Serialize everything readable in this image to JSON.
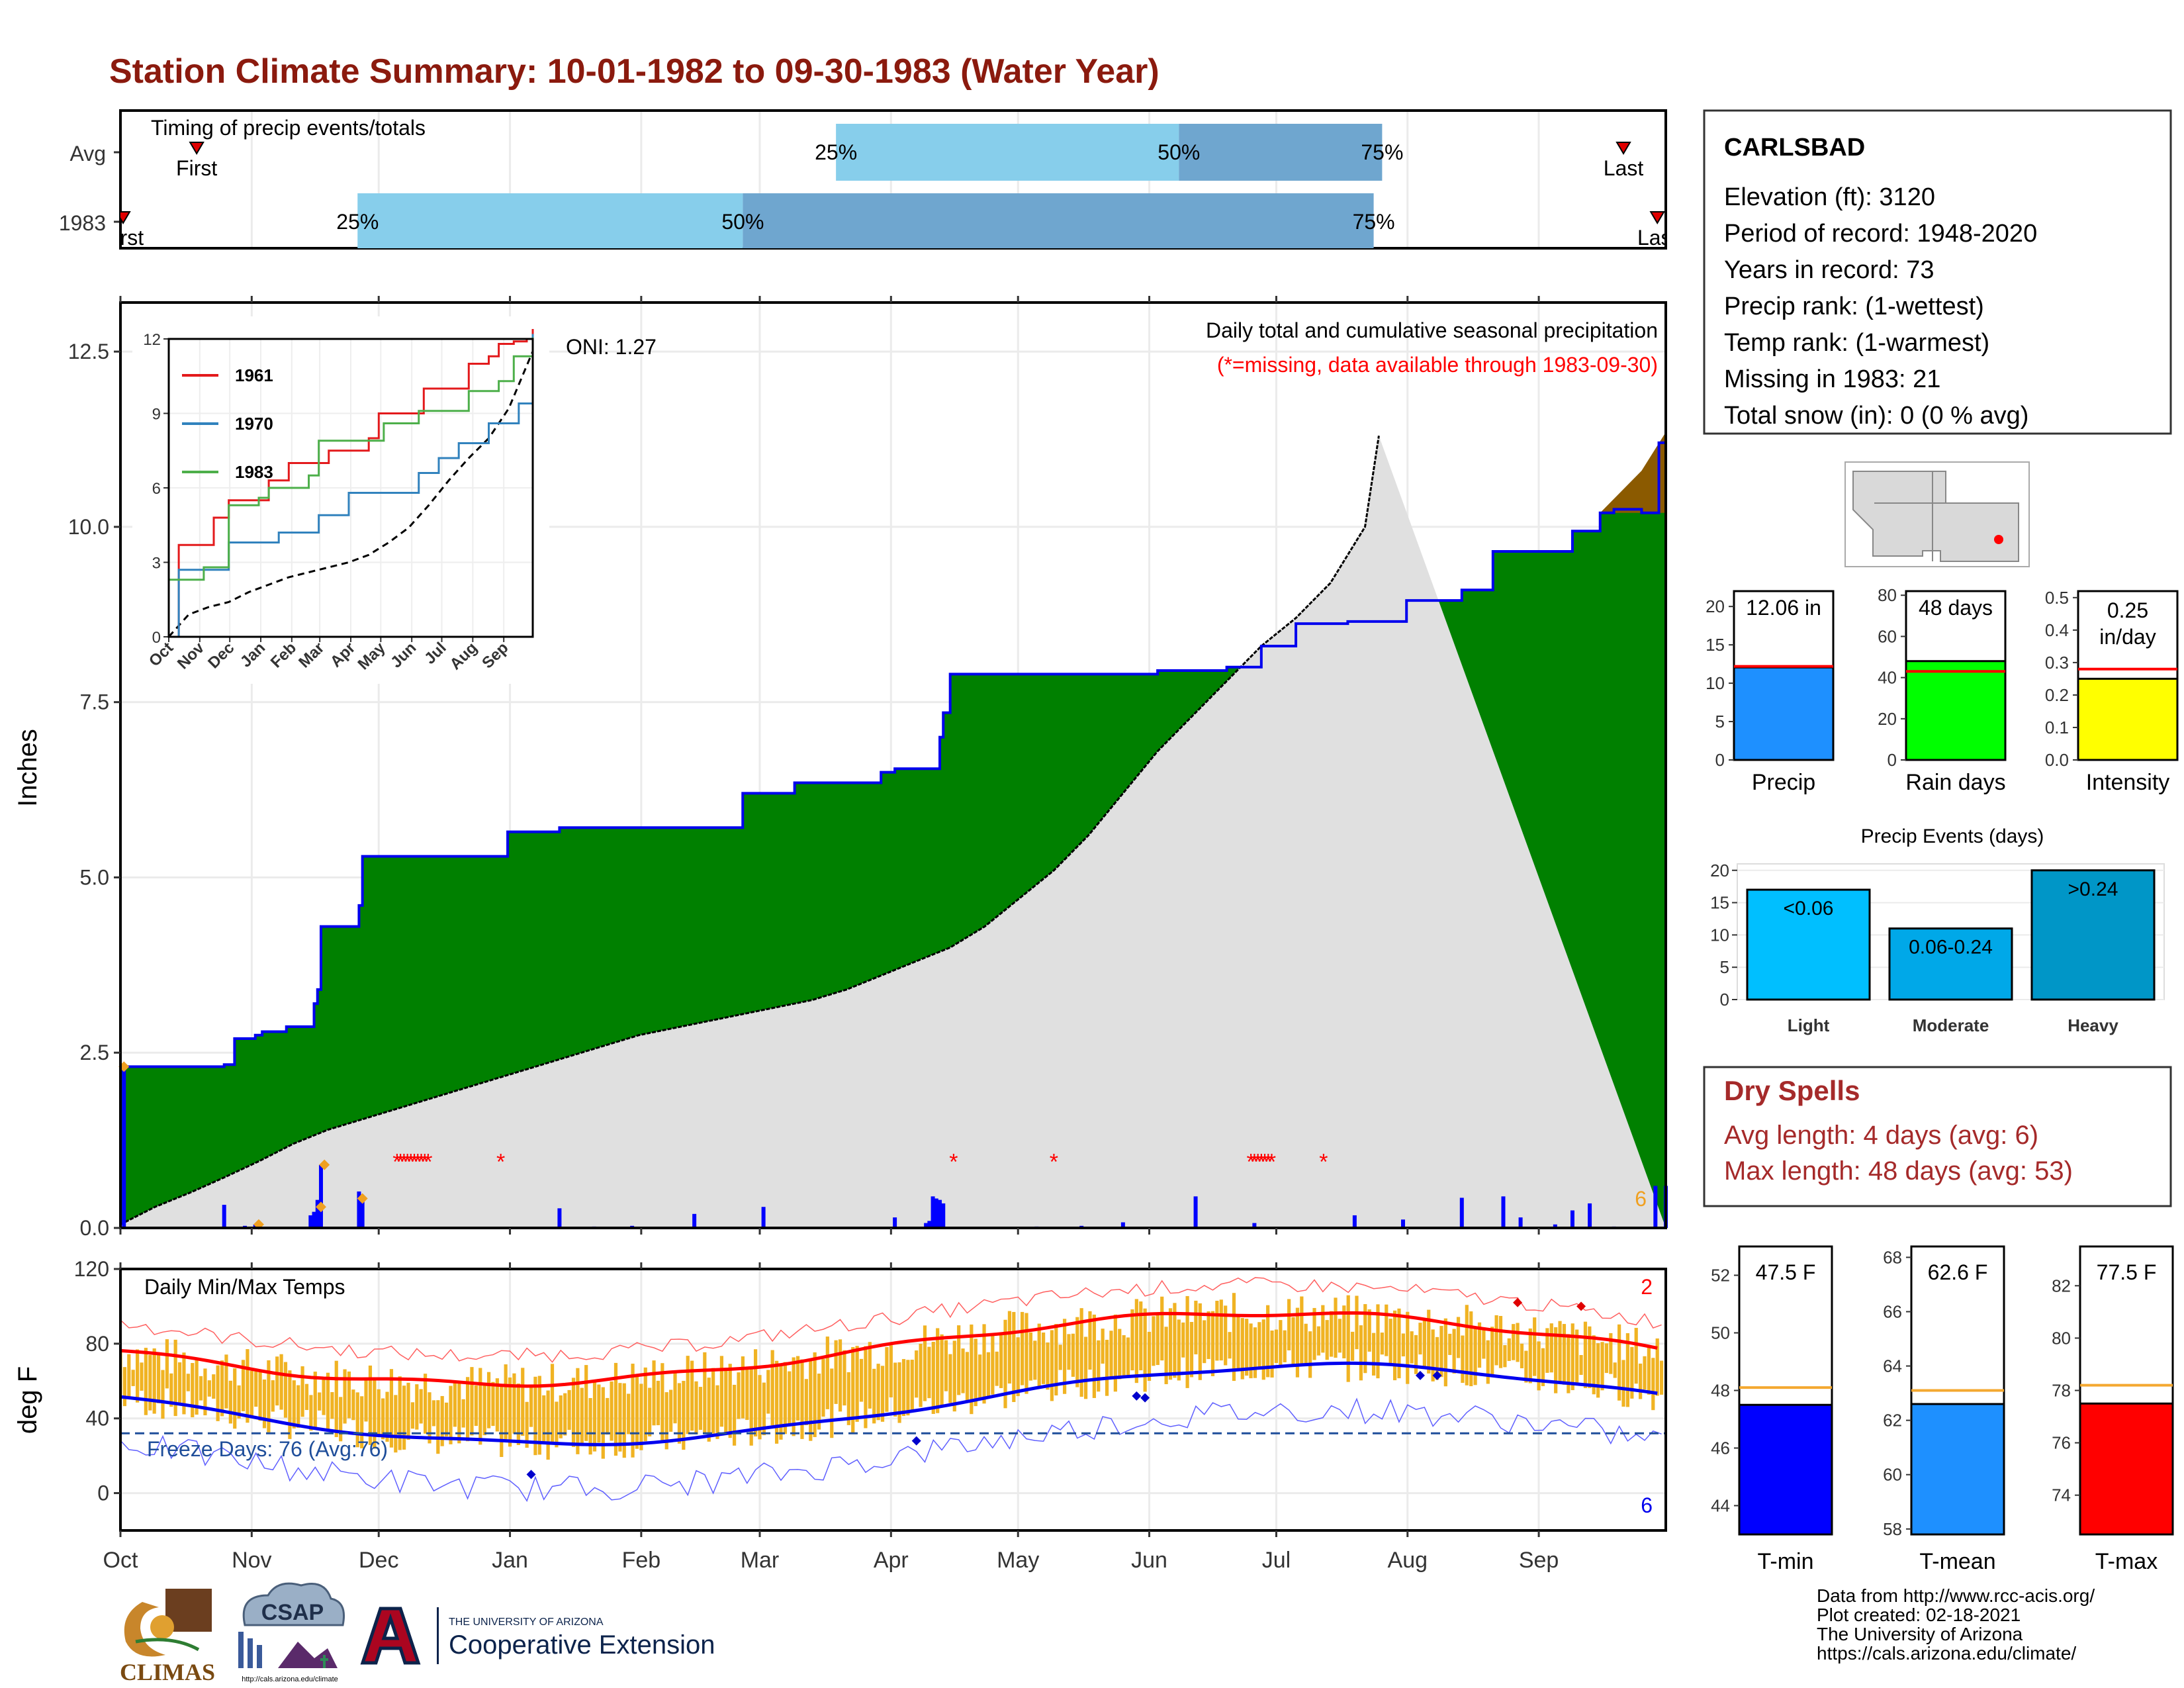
{
  "title": "Station Climate Summary: 10-01-1982 to 09-30-1983 (Water Year)",
  "colors": {
    "title": "#8B1A0E",
    "green": "#008000",
    "brown": "#8B5A00",
    "normal_fill": "#E0E0E0",
    "blue_line": "#0000EE",
    "orange": "#F0B323",
    "red": "#FF0000",
    "light_blue": "#87CEEB",
    "mid_blue": "#6FA6CF",
    "dry_spell": "#A52A2A"
  },
  "timing": {
    "label": "Timing of precip events/totals",
    "rows": [
      "Avg",
      "1983"
    ],
    "avg": {
      "first_label": "First",
      "last_label": "Last",
      "first_day": 18,
      "last_day": 355,
      "p25": 169,
      "p50": 250,
      "p75": 298
    },
    "year": {
      "first_label": "First",
      "last_label": "Last",
      "first_day": 0,
      "last_day": 363,
      "p25": 56,
      "p50": 147,
      "p75": 296
    },
    "pct_labels": [
      "25%",
      "50%",
      "75%"
    ]
  },
  "months": [
    "Oct",
    "Nov",
    "Dec",
    "Jan",
    "Feb",
    "Mar",
    "Apr",
    "May",
    "Jun",
    "Jul",
    "Aug",
    "Sep"
  ],
  "precip": {
    "ylabel": "Inches",
    "yticks": [
      "0.0",
      "2.5",
      "5.0",
      "7.5",
      "10.0",
      "12.5"
    ],
    "ylim": [
      0,
      13.2
    ],
    "subtitle": "Daily total and cumulative seasonal precipitation",
    "missing_note": "(*=missing, data available through 1983-09-30)",
    "oni": "ONI: 1.27",
    "corner_count": "6",
    "cumulative_steps": [
      [
        0,
        2.3
      ],
      [
        30,
        2.33
      ],
      [
        33,
        2.7
      ],
      [
        39,
        2.75
      ],
      [
        41,
        2.8
      ],
      [
        48,
        2.87
      ],
      [
        56,
        3.2
      ],
      [
        57,
        3.4
      ],
      [
        58,
        4.3
      ],
      [
        69,
        4.6
      ],
      [
        70,
        5.3
      ],
      [
        112,
        5.65
      ],
      [
        127,
        5.71
      ],
      [
        180,
        6.2
      ],
      [
        195,
        6.35
      ],
      [
        220,
        6.5
      ],
      [
        224,
        6.55
      ],
      [
        237,
        7.0
      ],
      [
        238,
        7.35
      ],
      [
        240,
        7.9
      ],
      [
        300,
        7.95
      ],
      [
        320,
        8.0
      ],
      [
        330,
        8.3
      ],
      [
        340,
        8.62
      ],
      [
        355,
        8.65
      ],
      [
        372,
        8.95
      ],
      [
        388,
        9.1
      ],
      [
        397,
        9.65
      ],
      [
        420,
        9.94
      ],
      [
        428,
        10.2
      ],
      [
        432,
        10.25
      ],
      [
        440,
        10.2
      ],
      [
        445,
        11.2
      ],
      [
        447,
        12.06
      ]
    ],
    "normal_points": [
      [
        0,
        0.05
      ],
      [
        10,
        0.3
      ],
      [
        20,
        0.5
      ],
      [
        30,
        0.72
      ],
      [
        40,
        0.95
      ],
      [
        50,
        1.2
      ],
      [
        60,
        1.4
      ],
      [
        70,
        1.55
      ],
      [
        80,
        1.7
      ],
      [
        90,
        1.85
      ],
      [
        100,
        2.0
      ],
      [
        110,
        2.15
      ],
      [
        120,
        2.3
      ],
      [
        130,
        2.45
      ],
      [
        140,
        2.6
      ],
      [
        150,
        2.75
      ],
      [
        160,
        2.85
      ],
      [
        170,
        2.95
      ],
      [
        180,
        3.05
      ],
      [
        190,
        3.15
      ],
      [
        200,
        3.25
      ],
      [
        210,
        3.4
      ],
      [
        220,
        3.6
      ],
      [
        230,
        3.8
      ],
      [
        240,
        4.0
      ],
      [
        250,
        4.3
      ],
      [
        260,
        4.7
      ],
      [
        270,
        5.1
      ],
      [
        280,
        5.6
      ],
      [
        290,
        6.2
      ],
      [
        300,
        6.8
      ],
      [
        310,
        7.3
      ],
      [
        320,
        7.8
      ],
      [
        330,
        8.3
      ],
      [
        340,
        8.7
      ],
      [
        350,
        9.2
      ],
      [
        360,
        10.0
      ],
      [
        364,
        11.3
      ]
    ],
    "daily_bars": [
      [
        1,
        2.3
      ],
      [
        30,
        0.33
      ],
      [
        36,
        0.03
      ],
      [
        39,
        0.05
      ],
      [
        55,
        0.18
      ],
      [
        56,
        0.23
      ],
      [
        57,
        0.4
      ],
      [
        58,
        0.9
      ],
      [
        69,
        0.52
      ],
      [
        70,
        0.42
      ],
      [
        127,
        0.28
      ],
      [
        137,
        0.02
      ],
      [
        148,
        0.03
      ],
      [
        166,
        0.2
      ],
      [
        186,
        0.3
      ],
      [
        224,
        0.15
      ],
      [
        233,
        0.07
      ],
      [
        234,
        0.1
      ],
      [
        235,
        0.45
      ],
      [
        236,
        0.42
      ],
      [
        237,
        0.4
      ],
      [
        238,
        0.35
      ],
      [
        265,
        0.02
      ],
      [
        278,
        0.03
      ],
      [
        290,
        0.08
      ],
      [
        311,
        0.45
      ],
      [
        328,
        0.07
      ],
      [
        357,
        0.18
      ],
      [
        371,
        0.12
      ],
      [
        388,
        0.43
      ],
      [
        400,
        0.45
      ],
      [
        405,
        0.15
      ],
      [
        415,
        0.05
      ],
      [
        420,
        0.25
      ],
      [
        425,
        0.35
      ],
      [
        432,
        0.02
      ],
      [
        444,
        0.6
      ],
      [
        447,
        0.6
      ]
    ],
    "missing_days": [
      80,
      81,
      82,
      83,
      84,
      85,
      86,
      87,
      88,
      89,
      110,
      241,
      270,
      327,
      328,
      329,
      330,
      331,
      332,
      333,
      348
    ],
    "estimate_days": [
      [
        1,
        2.3
      ],
      [
        40,
        0.05
      ],
      [
        58,
        0.3
      ],
      [
        59,
        0.9
      ],
      [
        70,
        0.42
      ]
    ]
  },
  "inset": {
    "yticks": [
      "0",
      "3",
      "6",
      "9",
      "12"
    ],
    "xticks": [
      "Oct",
      "Nov",
      "Dec",
      "Jan",
      "Feb",
      "Mar",
      "Apr",
      "May",
      "Jun",
      "Jul",
      "Aug",
      "Sep"
    ],
    "series": [
      {
        "name": "1961",
        "color": "#E31A1C",
        "points": [
          [
            0,
            0
          ],
          [
            10,
            3.7
          ],
          [
            40,
            3.7
          ],
          [
            45,
            4.8
          ],
          [
            60,
            5.5
          ],
          [
            90,
            5.5
          ],
          [
            100,
            6.3
          ],
          [
            120,
            7.0
          ],
          [
            150,
            7.0
          ],
          [
            160,
            7.5
          ],
          [
            180,
            7.5
          ],
          [
            200,
            8.0
          ],
          [
            210,
            9.0
          ],
          [
            240,
            9.0
          ],
          [
            255,
            10.0
          ],
          [
            290,
            10.0
          ],
          [
            300,
            11.0
          ],
          [
            320,
            11.3
          ],
          [
            330,
            11.8
          ],
          [
            345,
            11.9
          ],
          [
            358,
            12.0
          ],
          [
            364,
            12.4
          ]
        ]
      },
      {
        "name": "1970",
        "color": "#3182BD",
        "points": [
          [
            0,
            0
          ],
          [
            10,
            2.7
          ],
          [
            50,
            2.7
          ],
          [
            60,
            3.8
          ],
          [
            90,
            3.8
          ],
          [
            110,
            4.2
          ],
          [
            130,
            4.2
          ],
          [
            150,
            4.9
          ],
          [
            170,
            4.9
          ],
          [
            180,
            5.8
          ],
          [
            230,
            5.8
          ],
          [
            250,
            6.6
          ],
          [
            270,
            7.2
          ],
          [
            290,
            7.8
          ],
          [
            320,
            8.6
          ],
          [
            345,
            8.6
          ],
          [
            350,
            9.4
          ],
          [
            364,
            12.2
          ]
        ]
      },
      {
        "name": "1983",
        "color": "#4DAF4A",
        "points": [
          [
            0,
            2.3
          ],
          [
            30,
            2.3
          ],
          [
            35,
            2.8
          ],
          [
            55,
            2.8
          ],
          [
            60,
            5.3
          ],
          [
            90,
            5.6
          ],
          [
            100,
            6.0
          ],
          [
            130,
            6.0
          ],
          [
            140,
            6.5
          ],
          [
            150,
            7.9
          ],
          [
            200,
            7.9
          ],
          [
            215,
            8.6
          ],
          [
            240,
            8.6
          ],
          [
            250,
            9.1
          ],
          [
            290,
            9.1
          ],
          [
            300,
            9.9
          ],
          [
            330,
            10.3
          ],
          [
            345,
            11.3
          ],
          [
            364,
            12.06
          ]
        ]
      }
    ],
    "normal_points": [
      [
        0,
        0
      ],
      [
        20,
        0.9
      ],
      [
        40,
        1.2
      ],
      [
        60,
        1.4
      ],
      [
        80,
        1.8
      ],
      [
        100,
        2.1
      ],
      [
        120,
        2.4
      ],
      [
        140,
        2.6
      ],
      [
        160,
        2.8
      ],
      [
        180,
        3.0
      ],
      [
        200,
        3.3
      ],
      [
        220,
        3.8
      ],
      [
        240,
        4.4
      ],
      [
        260,
        5.3
      ],
      [
        280,
        6.3
      ],
      [
        300,
        7.2
      ],
      [
        320,
        8.0
      ],
      [
        340,
        9.2
      ],
      [
        364,
        11.5
      ]
    ]
  },
  "temps": {
    "ylabel": "deg F",
    "label": "Daily Min/Max Temps",
    "yticks": [
      "0",
      "40",
      "80",
      "120"
    ],
    "ylim": [
      -20,
      120
    ],
    "freeze_label": "Freeze Days: 76 (Avg:76)",
    "freeze_line": 32,
    "red_count": "2",
    "blue_count": "6"
  },
  "station": {
    "name": "CARLSBAD",
    "lines": [
      "Elevation (ft): 3120",
      "Period of record: 1948-2020",
      "Years in record: 73",
      "Precip rank:  (1-wettest)",
      "Temp rank:  (1-warmest)",
      "Missing in 1983: 21",
      "Total snow (in): 0 (0 % avg)"
    ]
  },
  "summary_bars": [
    {
      "label": "Precip",
      "value_label": "12.06 in",
      "value": 12.06,
      "avg": 12.2,
      "ymax": 22,
      "yticks": [
        "0",
        "5",
        "10",
        "15",
        "20"
      ],
      "yvals": [
        0,
        5,
        10,
        15,
        20
      ],
      "color": "#1E90FF"
    },
    {
      "label": "Rain days",
      "value_label": "48 days",
      "value": 48,
      "avg": 43,
      "ymax": 82,
      "yticks": [
        "0",
        "20",
        "40",
        "60",
        "80"
      ],
      "yvals": [
        0,
        20,
        40,
        60,
        80
      ],
      "color": "#00FF00"
    },
    {
      "label": "Intensity",
      "value_label": "0.25 in/day",
      "value_label_1": "0.25",
      "value_label_2": "in/day",
      "value": 0.25,
      "avg": 0.28,
      "ymax": 0.52,
      "yticks": [
        "0.0",
        "0.1",
        "0.2",
        "0.3",
        "0.4",
        "0.5"
      ],
      "yvals": [
        0,
        0.1,
        0.2,
        0.3,
        0.4,
        0.5
      ],
      "color": "#FFFF00"
    }
  ],
  "events": {
    "title": "Precip Events (days)",
    "yticks": [
      "0",
      "5",
      "10",
      "15",
      "20"
    ],
    "ymax": 21,
    "bars": [
      {
        "category": "Light",
        "label": "<0.06",
        "value": 17,
        "color": "#00BFFF"
      },
      {
        "category": "Moderate",
        "label": "0.06-0.24",
        "value": 11,
        "color": "#00A8E8"
      },
      {
        "category": "Heavy",
        "label": ">0.24",
        "value": 20,
        "color": "#0096C7"
      }
    ]
  },
  "dry_spells": {
    "title": "Dry Spells",
    "avg_length": "Avg length: 4 days (avg: 6)",
    "max_length": "Max length: 48 days (avg: 53)"
  },
  "temp_bars": [
    {
      "label": "T-min",
      "value_label": "47.5 F",
      "value": 47.5,
      "avg": 48.1,
      "ymin": 43,
      "ymax": 53,
      "yticks": [
        "44",
        "46",
        "48",
        "50",
        "52"
      ],
      "yvals": [
        44,
        46,
        48,
        50,
        52
      ],
      "color": "#0000FF"
    },
    {
      "label": "T-mean",
      "value_label": "62.6 F",
      "value": 62.6,
      "avg": 63.1,
      "ymin": 57.8,
      "ymax": 68.4,
      "yticks": [
        "58",
        "60",
        "62",
        "64",
        "66",
        "68"
      ],
      "yvals": [
        58,
        60,
        62,
        64,
        66,
        68
      ],
      "color": "#1E90FF"
    },
    {
      "label": "T-max",
      "value_label": "77.5 F",
      "value": 77.5,
      "avg": 78.2,
      "ymin": 72.5,
      "ymax": 83.5,
      "yticks": [
        "74",
        "76",
        "78",
        "80",
        "82"
      ],
      "yvals": [
        74,
        76,
        78,
        80,
        82
      ],
      "color": "#FF0000"
    }
  ],
  "footer": {
    "lines": [
      "Data from http://www.rcc-acis.org/",
      "Plot created: 02-18-2021",
      "The University of Arizona",
      "https://cals.arizona.edu/climate/"
    ]
  },
  "logos": {
    "climas": "CLIMAS",
    "csap": "CSAP",
    "csap_url": "http://cals.arizona.edu/climate",
    "ua_small": "THE UNIVERSITY OF ARIZONA",
    "ua_big": "Cooperative Extension"
  }
}
